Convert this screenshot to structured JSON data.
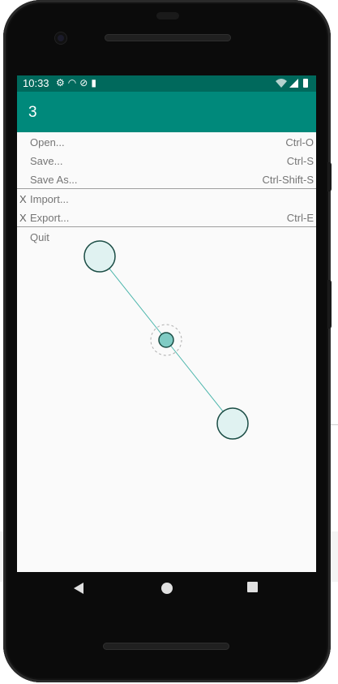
{
  "status_bar": {
    "time": "10:33",
    "left_icons": [
      "gear-icon",
      "wifi-off-icon",
      "sync-disabled-icon",
      "sd-card-icon"
    ],
    "right_icons": [
      "wifi-icon",
      "signal-icon",
      "battery-icon"
    ]
  },
  "app_bar": {
    "title": "3"
  },
  "menu": {
    "items": [
      {
        "check": "",
        "label": "Open...",
        "shortcut": "Ctrl-O"
      },
      {
        "check": "",
        "label": "Save...",
        "shortcut": "Ctrl-S"
      },
      {
        "check": "",
        "label": "Save As...",
        "shortcut": "Ctrl-Shift-S"
      },
      {
        "check": "X",
        "label": "Import...",
        "shortcut": ""
      },
      {
        "check": "X",
        "label": "Export...",
        "shortcut": "Ctrl-E"
      },
      {
        "check": "",
        "label": "Quit",
        "shortcut": ""
      }
    ]
  },
  "colors": {
    "status_bar": "#00695c",
    "app_bar": "#00897b",
    "node_fill": "#e0f2f1",
    "center_fill": "#80cbc4",
    "line": "#4db6ac"
  },
  "nav_bar": {
    "icons": [
      "back-icon",
      "home-icon",
      "recents-icon"
    ]
  }
}
